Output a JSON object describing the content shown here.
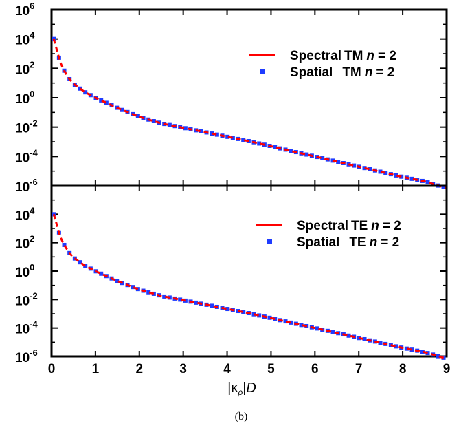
{
  "caption": "(b)",
  "chart_data": [
    {
      "type": "line",
      "y_scale": "log",
      "xlim": [
        0,
        9
      ],
      "ylim_exponents": [
        -6,
        6
      ],
      "x_ticks": [
        "0",
        "1",
        "2",
        "3",
        "4",
        "5",
        "6",
        "7",
        "8",
        "9"
      ],
      "y_ticks": [
        {
          "base": "10",
          "exp": "6"
        },
        {
          "base": "10",
          "exp": "4"
        },
        {
          "base": "10",
          "exp": "2"
        },
        {
          "base": "10",
          "exp": "0"
        },
        {
          "base": "10",
          "exp": "-2"
        },
        {
          "base": "10",
          "exp": "-4"
        },
        {
          "base": "10",
          "exp": "-6"
        }
      ],
      "x": [
        0.05,
        0.1,
        0.2,
        0.3,
        0.4,
        0.5,
        0.75,
        1,
        1.5,
        2,
        2.5,
        3,
        3.5,
        4,
        4.5,
        5,
        5.5,
        6,
        6.5,
        7,
        7.5,
        8,
        8.5,
        9
      ],
      "y": [
        10000,
        3000,
        250,
        60,
        20,
        9,
        2.5,
        1,
        0.2,
        0.05,
        0.018,
        0.009,
        0.0045,
        0.0022,
        0.0011,
        0.0005,
        0.00022,
        0.0001,
        4.5e-05,
        2e-05,
        9e-06,
        4e-06,
        2e-06,
        7e-07
      ],
      "series": [
        {
          "name": "Spectral",
          "mode": "TM",
          "n_label": "n",
          "n_value": "= 2",
          "style": "line",
          "color": "#ff0000"
        },
        {
          "name": "Spatial",
          "mode": "TM",
          "n_label": "n",
          "n_value": "= 2",
          "style": "markers",
          "color": "#1f3cff"
        }
      ]
    },
    {
      "type": "line",
      "y_scale": "log",
      "xlim": [
        0,
        9
      ],
      "ylim_exponents": [
        -6,
        6
      ],
      "x_ticks": [
        "0",
        "1",
        "2",
        "3",
        "4",
        "5",
        "6",
        "7",
        "8",
        "9"
      ],
      "y_ticks": [
        {
          "base": "10",
          "exp": "4"
        },
        {
          "base": "10",
          "exp": "2"
        },
        {
          "base": "10",
          "exp": "0"
        },
        {
          "base": "10",
          "exp": "-2"
        },
        {
          "base": "10",
          "exp": "-4"
        },
        {
          "base": "10",
          "exp": "-6"
        }
      ],
      "x": [
        0.05,
        0.1,
        0.2,
        0.3,
        0.4,
        0.5,
        0.75,
        1,
        1.5,
        2,
        2.5,
        3,
        3.5,
        4,
        4.5,
        5,
        5.5,
        6,
        6.5,
        7,
        7.5,
        8,
        8.5,
        9
      ],
      "y": [
        10000,
        3000,
        250,
        60,
        20,
        9,
        2.5,
        1,
        0.2,
        0.05,
        0.018,
        0.009,
        0.0045,
        0.0022,
        0.0011,
        0.0005,
        0.00022,
        0.0001,
        4.5e-05,
        2e-05,
        9e-06,
        4e-06,
        2e-06,
        7e-07
      ],
      "series": [
        {
          "name": "Spectral",
          "mode": "TE",
          "n_label": "n",
          "n_value": "= 2",
          "style": "line",
          "color": "#ff0000"
        },
        {
          "name": "Spatial",
          "mode": "TE",
          "n_label": "n",
          "n_value": "= 2",
          "style": "markers",
          "color": "#1f3cff"
        }
      ],
      "xlabel": {
        "open": "|",
        "kappa": "κ",
        "sub": "ρ",
        "close": "|",
        "var": "D"
      }
    }
  ]
}
